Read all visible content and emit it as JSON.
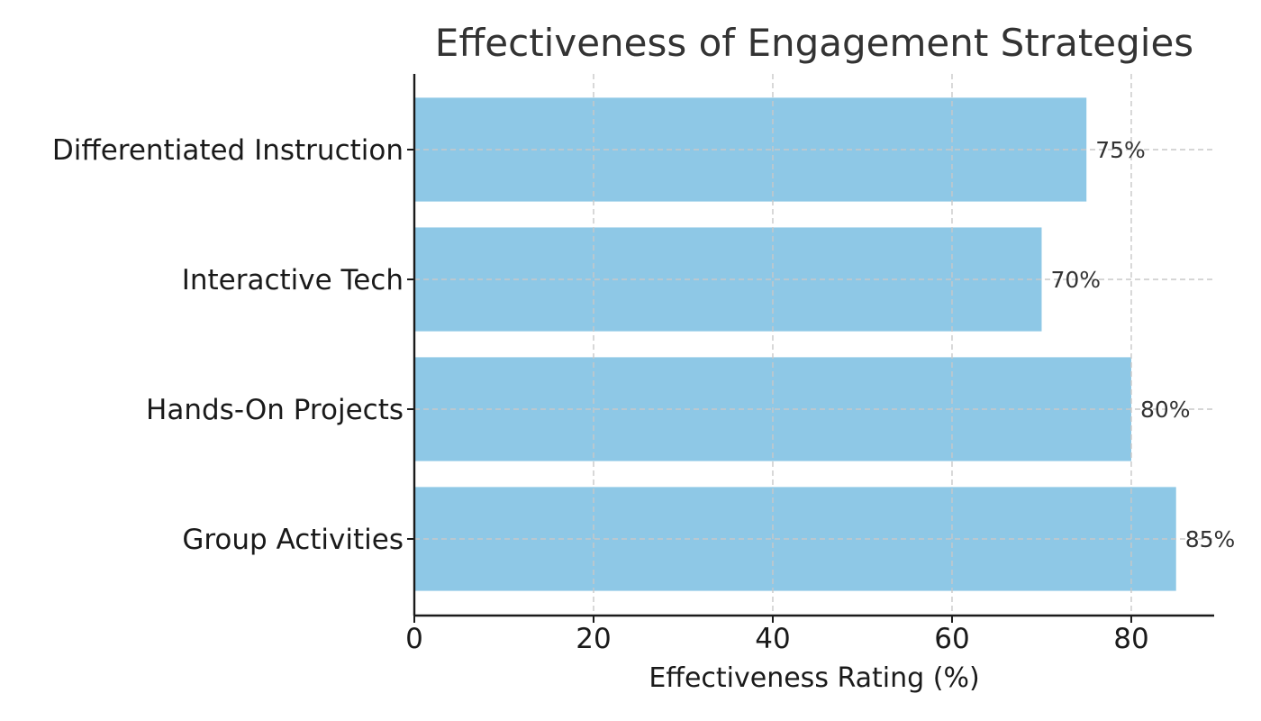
{
  "chart_data": {
    "type": "bar",
    "orientation": "horizontal",
    "title": "Effectiveness of Engagement Strategies",
    "xlabel": "Effectiveness Rating (%)",
    "ylabel": "",
    "categories": [
      "Differentiated Instruction",
      "Interactive Tech",
      "Hands-On Projects",
      "Group Activities"
    ],
    "values": [
      75,
      70,
      80,
      85
    ],
    "data_labels": [
      "75%",
      "70%",
      "80%",
      "85%"
    ],
    "xlim": [
      0,
      89.25
    ],
    "xticks": [
      0,
      20,
      40,
      60,
      80
    ],
    "grid": true,
    "bar_color": "#8ec8e6",
    "gridline_color": "#c8c8c8",
    "axis_color": "#1a1a1a"
  }
}
